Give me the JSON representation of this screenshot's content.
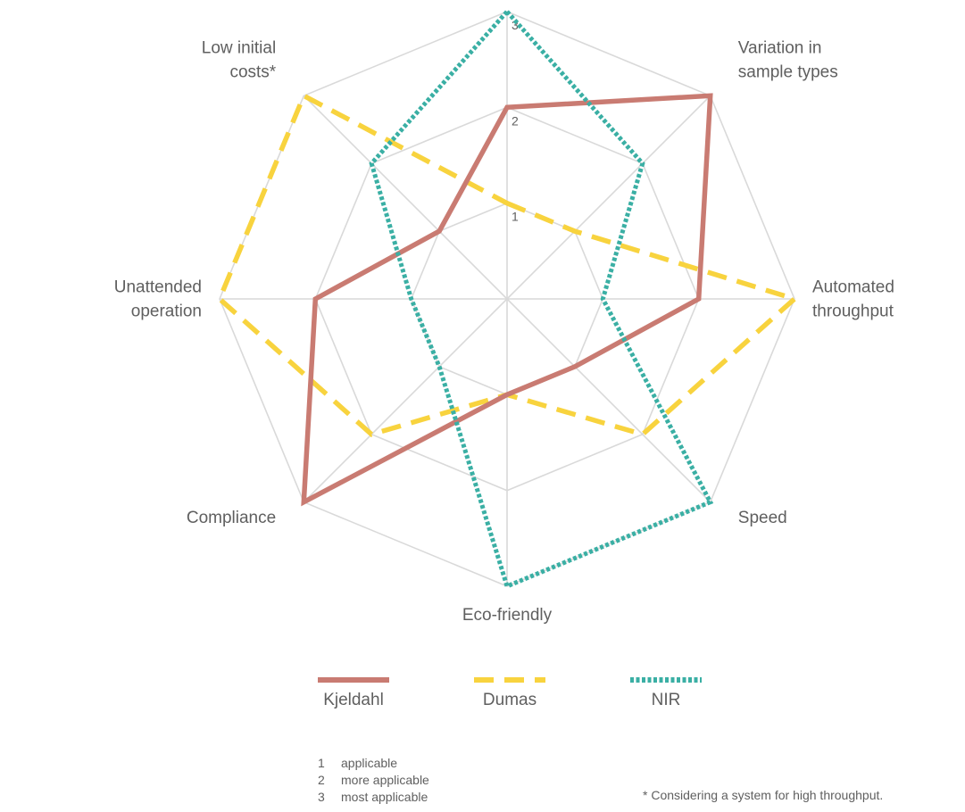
{
  "chart_data": {
    "type": "radar",
    "axes": [
      {
        "lines": [
          "",
          ""
        ]
      },
      {
        "lines": [
          "Variation in",
          "sample types"
        ]
      },
      {
        "lines": [
          "Automated",
          "throughput"
        ]
      },
      {
        "lines": [
          "Speed"
        ]
      },
      {
        "lines": [
          "Eco-friendly"
        ]
      },
      {
        "lines": [
          "Compliance"
        ]
      },
      {
        "lines": [
          "Unattended",
          "operation"
        ]
      },
      {
        "lines": [
          "Low initial",
          "costs*"
        ]
      }
    ],
    "range": [
      0,
      3
    ],
    "ticks": [
      "1",
      "2",
      "3"
    ],
    "series": [
      {
        "name": "Kjeldahl",
        "values": [
          2,
          3,
          2,
          1,
          1,
          3,
          2,
          1
        ],
        "color": "#c97b72",
        "style": "solid"
      },
      {
        "name": "Dumas",
        "values": [
          1,
          1,
          3,
          2,
          1,
          2,
          3,
          3
        ],
        "color": "#f8d33e",
        "style": "dashed"
      },
      {
        "name": "NIR",
        "values": [
          3,
          2,
          1,
          3,
          3,
          1,
          1,
          2
        ],
        "color": "#3aafa4",
        "style": "dotted"
      }
    ],
    "grid": true,
    "legend": "bottom"
  },
  "scale_key": [
    {
      "num": "1",
      "text": "applicable"
    },
    {
      "num": "2",
      "text": "more applicable"
    },
    {
      "num": "3",
      "text": "most applicable"
    }
  ],
  "footnote": "* Considering a system for high throughput."
}
